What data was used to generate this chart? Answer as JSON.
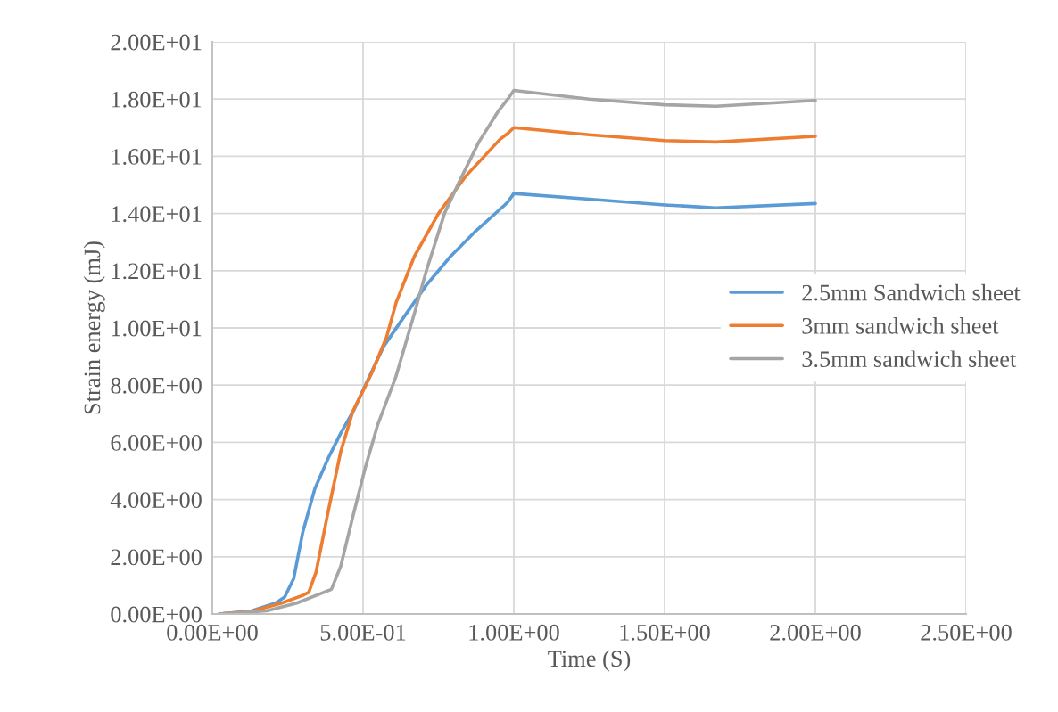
{
  "chart_data": {
    "type": "line",
    "xlabel": "Time (S)",
    "ylabel": "Strain energy (mJ)",
    "xlim": [
      0,
      2.5
    ],
    "ylim": [
      0,
      20
    ],
    "xticks": [
      {
        "value": 0,
        "label": "0.00E+00"
      },
      {
        "value": 0.5,
        "label": "5.00E-01"
      },
      {
        "value": 1.0,
        "label": "1.00E+00"
      },
      {
        "value": 1.5,
        "label": "1.50E+00"
      },
      {
        "value": 2.0,
        "label": "2.00E+00"
      },
      {
        "value": 2.5,
        "label": "2.50E+00"
      }
    ],
    "yticks": [
      {
        "value": 0,
        "label": "0.00E+00"
      },
      {
        "value": 2,
        "label": "2.00E+00"
      },
      {
        "value": 4,
        "label": "4.00E+00"
      },
      {
        "value": 6,
        "label": "6.00E+00"
      },
      {
        "value": 8,
        "label": "8.00E+00"
      },
      {
        "value": 10,
        "label": "1.00E+01"
      },
      {
        "value": 12,
        "label": "1.20E+01"
      },
      {
        "value": 14,
        "label": "1.40E+01"
      },
      {
        "value": 16,
        "label": "1.60E+01"
      },
      {
        "value": 18,
        "label": "1.80E+01"
      },
      {
        "value": 20,
        "label": "2.00E+01"
      }
    ],
    "grid": true,
    "legend": "right",
    "marker": "none",
    "line_style": "solid",
    "series": [
      {
        "name": "2.5mm Sandwich sheet",
        "color": "#5b9bd5",
        "x": [
          0.023,
          0.13,
          0.21,
          0.24,
          0.27,
          0.3,
          0.34,
          0.385,
          0.426,
          0.47,
          0.49,
          0.568,
          0.63,
          0.71,
          0.79,
          0.87,
          0.97,
          0.98,
          1.0,
          1.25,
          1.5,
          1.67,
          2.0
        ],
        "values": [
          0,
          0.11,
          0.38,
          0.59,
          1.24,
          2.86,
          4.38,
          5.46,
          6.32,
          7.14,
          7.6,
          9.35,
          10.3,
          11.5,
          12.5,
          13.35,
          14.3,
          14.4,
          14.7,
          14.5,
          14.3,
          14.2,
          14.35
        ]
      },
      {
        "name": "3mm sandwich sheet",
        "color": "#ed7d31",
        "x": [
          0.023,
          0.13,
          0.23,
          0.3,
          0.32,
          0.344,
          0.385,
          0.426,
          0.466,
          0.527,
          0.578,
          0.61,
          0.67,
          0.75,
          0.84,
          0.955,
          0.98,
          1.0,
          1.25,
          1.5,
          1.67,
          2.0
        ],
        "values": [
          0,
          0.09,
          0.38,
          0.65,
          0.76,
          1.46,
          3.62,
          5.68,
          7.08,
          8.38,
          9.68,
          10.9,
          12.5,
          14.0,
          15.3,
          16.6,
          16.8,
          17.0,
          16.75,
          16.55,
          16.5,
          16.7
        ]
      },
      {
        "name": "3.5mm sandwich sheet",
        "color": "#a5a5a5",
        "x": [
          0.023,
          0.18,
          0.28,
          0.395,
          0.426,
          0.466,
          0.507,
          0.548,
          0.609,
          0.67,
          0.71,
          0.77,
          0.823,
          0.884,
          0.95,
          0.98,
          1.0,
          1.25,
          1.5,
          1.67,
          2.0
        ],
        "values": [
          0,
          0.11,
          0.38,
          0.86,
          1.67,
          3.4,
          5.1,
          6.6,
          8.3,
          10.5,
          12.0,
          14.0,
          15.2,
          16.5,
          17.6,
          18.0,
          18.3,
          18.0,
          17.8,
          17.75,
          17.95
        ]
      }
    ]
  }
}
